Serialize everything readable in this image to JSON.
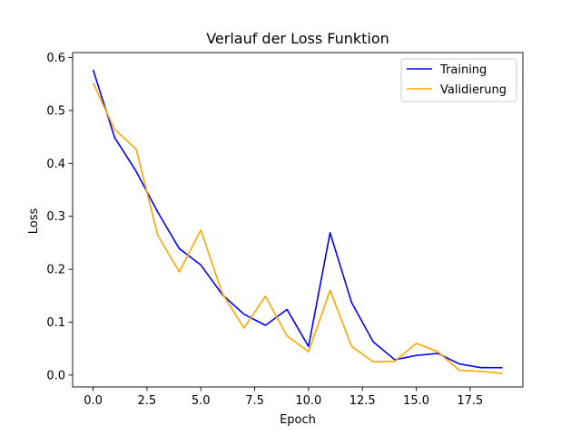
{
  "chart_data": {
    "type": "line",
    "title": "Verlauf der Loss Funktion",
    "xlabel": "Epoch",
    "ylabel": "Loss",
    "xlim": [
      -0.95,
      19.95
    ],
    "ylim": [
      -0.0225,
      0.6095
    ],
    "x_ticks": [
      0,
      2.5,
      5,
      7.5,
      10,
      12.5,
      15,
      17.5
    ],
    "x_tick_labels": [
      "0.0",
      "2.5",
      "5.0",
      "7.5",
      "10.0",
      "12.5",
      "15.0",
      "17.5"
    ],
    "y_ticks": [
      0,
      0.1,
      0.2,
      0.3,
      0.4,
      0.5,
      0.6
    ],
    "y_tick_labels": [
      "0.0",
      "0.1",
      "0.2",
      "0.3",
      "0.4",
      "0.5",
      "0.6"
    ],
    "grid": false,
    "legend_position": "top-right",
    "x": [
      0,
      1,
      2,
      3,
      4,
      5,
      6,
      7,
      8,
      9,
      10,
      11,
      12,
      13,
      14,
      15,
      16,
      17,
      18,
      19
    ],
    "series": [
      {
        "name": "Training",
        "color": "#0000ff",
        "values": [
          0.577,
          0.449,
          0.385,
          0.308,
          0.239,
          0.208,
          0.152,
          0.115,
          0.094,
          0.124,
          0.054,
          0.269,
          0.137,
          0.063,
          0.029,
          0.037,
          0.041,
          0.021,
          0.014,
          0.014
        ]
      },
      {
        "name": "Validierung",
        "color": "#ffa500",
        "values": [
          0.552,
          0.464,
          0.427,
          0.264,
          0.195,
          0.274,
          0.154,
          0.089,
          0.149,
          0.074,
          0.044,
          0.16,
          0.054,
          0.025,
          0.026,
          0.06,
          0.044,
          0.009,
          0.007,
          0.003
        ]
      }
    ]
  }
}
